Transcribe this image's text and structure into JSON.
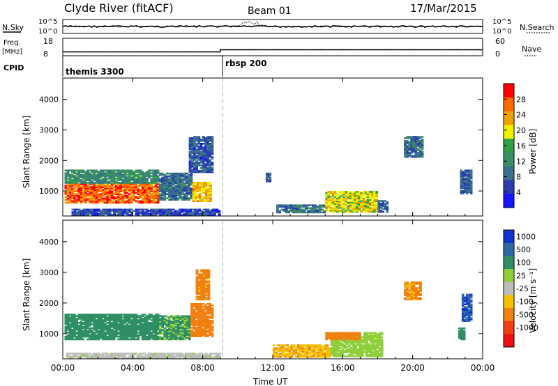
{
  "header": {
    "title": "Clyde River (fitACF)",
    "beam": "Beam 01",
    "date": "17/Mar/2015"
  },
  "strip_panels": {
    "nsky_label": "N.Sky",
    "nsky_ticks": [
      "10^5",
      "10^0"
    ],
    "nsearch_label": "N.Search",
    "nsearch_ticks": [
      "10^5",
      "10^0"
    ],
    "freq_label": "Freq.",
    "freq_unit": "[MHz]",
    "freq_ticks": [
      "18",
      "8"
    ],
    "nave_label": "Nave",
    "nave_ticks": [
      "60",
      "0"
    ],
    "cpid_label": "CPID",
    "cpid_segments": [
      {
        "label": "themis 3300",
        "start_ut": 0.0
      },
      {
        "label": "rbsp 200",
        "start_ut": 9.0
      }
    ],
    "freq_mhz_before": 10.2,
    "freq_mhz_after": 11.4,
    "nave_before": 14,
    "nave_after": 22
  },
  "chart_data": [
    {
      "type": "heatmap",
      "name": "power",
      "ylabel": "Slant Range [km]",
      "xlabel": "",
      "ylim": [
        180,
        4700
      ],
      "xlim_ut": [
        0,
        24
      ],
      "yticks": [
        "1000",
        "2000",
        "3000",
        "4000"
      ],
      "colorbar": {
        "label": "Power [dB]",
        "ticks": [
          "4",
          "8",
          "12",
          "16",
          "20",
          "24",
          "28"
        ],
        "range": [
          0,
          32
        ]
      },
      "regions": [
        {
          "t0": 0.1,
          "t1": 5.5,
          "r0": 600,
          "r1": 1250,
          "v": 27
        },
        {
          "t0": 0.1,
          "t1": 5.5,
          "r0": 1250,
          "r1": 1700,
          "v": 12
        },
        {
          "t0": 5.5,
          "t1": 7.4,
          "r0": 700,
          "r1": 1600,
          "v": 9
        },
        {
          "t0": 7.4,
          "t1": 8.5,
          "r0": 650,
          "r1": 1300,
          "v": 22
        },
        {
          "t0": 7.2,
          "t1": 8.6,
          "r0": 1600,
          "r1": 2800,
          "v": 7
        },
        {
          "t0": 11.6,
          "t1": 11.9,
          "r0": 1300,
          "r1": 1600,
          "v": 8
        },
        {
          "t0": 12.2,
          "t1": 15.0,
          "r0": 280,
          "r1": 560,
          "v": 10
        },
        {
          "t0": 15.0,
          "t1": 18.0,
          "r0": 300,
          "r1": 1000,
          "v": 20
        },
        {
          "t0": 18.0,
          "t1": 18.6,
          "r0": 300,
          "r1": 700,
          "v": 8
        },
        {
          "t0": 19.5,
          "t1": 20.6,
          "r0": 2100,
          "r1": 2800,
          "v": 9
        },
        {
          "t0": 22.7,
          "t1": 23.4,
          "r0": 900,
          "r1": 1700,
          "v": 8
        },
        {
          "t0": 0.5,
          "t1": 9.0,
          "r0": 200,
          "r1": 420,
          "v": 6
        }
      ]
    },
    {
      "type": "heatmap",
      "name": "velocity",
      "ylabel": "Slant Range [km]",
      "xlabel": "Time UT",
      "ylim": [
        180,
        4700
      ],
      "xlim_ut": [
        0,
        24
      ],
      "yticks": [
        "1000",
        "2000",
        "3000",
        "4000"
      ],
      "xticks": [
        "00:00",
        "04:00",
        "08:00",
        "12:00",
        "16:00",
        "20:00",
        "00:00"
      ],
      "colorbar": {
        "label": "Velocity [m s⁻¹]",
        "ticks": [
          "1000",
          "500",
          "100",
          "25",
          "-25",
          "-100",
          "-500",
          "-1000"
        ]
      },
      "regions": [
        {
          "t0": 0.1,
          "t1": 5.5,
          "r0": 800,
          "r1": 1650,
          "v": 200
        },
        {
          "t0": 5.5,
          "t1": 7.3,
          "r0": 800,
          "r1": 1600,
          "v": 120
        },
        {
          "t0": 7.3,
          "t1": 8.6,
          "r0": 900,
          "r1": 2000,
          "v": -250
        },
        {
          "t0": 7.6,
          "t1": 8.4,
          "r0": 2100,
          "r1": 3100,
          "v": -150
        },
        {
          "t0": 12.0,
          "t1": 15.3,
          "r0": 230,
          "r1": 650,
          "v": -80
        },
        {
          "t0": 15.3,
          "t1": 18.3,
          "r0": 250,
          "r1": 1050,
          "v": 60
        },
        {
          "t0": 15.0,
          "t1": 17.0,
          "r0": 800,
          "r1": 1050,
          "v": -300
        },
        {
          "t0": 19.5,
          "t1": 20.5,
          "r0": 2100,
          "r1": 2700,
          "v": -120
        },
        {
          "t0": 22.8,
          "t1": 23.4,
          "r0": 1400,
          "r1": 2300,
          "v": 900
        },
        {
          "t0": 22.6,
          "t1": 23.0,
          "r0": 800,
          "r1": 1200,
          "v": 200
        },
        {
          "t0": 0.2,
          "t1": 9.0,
          "r0": 190,
          "r1": 380,
          "v": 10
        }
      ]
    }
  ],
  "colors": {
    "power_scale": [
      "#1414ff",
      "#2a3cb0",
      "#3a6f8f",
      "#3c8f64",
      "#2e9f46",
      "#f0f000",
      "#f0a000",
      "#ff6a00",
      "#ff0000"
    ],
    "velocity_scale": [
      "#1133cc",
      "#2e68a8",
      "#2f8e64",
      "#8fcf3a",
      "#bdbdbd",
      "#f5c000",
      "#f08010",
      "#f04010",
      "#ee1111"
    ],
    "cpid_change_line": "#aaaaaa"
  }
}
